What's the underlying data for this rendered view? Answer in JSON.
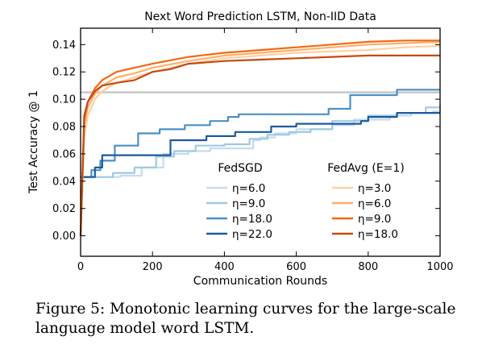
{
  "chart_data": {
    "type": "line",
    "title": "Next Word Prediction LSTM, Non-IID Data",
    "xlabel": "Communication Rounds",
    "ylabel": "Test Accuracy @ 1",
    "xlim": [
      0,
      1000
    ],
    "ylim": [
      -0.015,
      0.152
    ],
    "xticks": [
      "0",
      "200",
      "400",
      "600",
      "800",
      "1000"
    ],
    "yticks": [
      "0.00",
      "0.02",
      "0.04",
      "0.06",
      "0.08",
      "0.10",
      "0.12",
      "0.14"
    ],
    "grid": false,
    "reference_line": {
      "y": 0.105,
      "color": "#c8c8c8"
    },
    "legend_groups": [
      {
        "title": "FedSGD",
        "entries": [
          "η=6.0",
          "η=9.0",
          "η=18.0",
          "η=22.0"
        ]
      },
      {
        "title": "FedAvg (E=1)",
        "entries": [
          "η=3.0",
          "η=6.0",
          "η=9.0",
          "η=18.0"
        ]
      }
    ],
    "series": [
      {
        "group": "FedSGD",
        "name": "η=6.0",
        "color": "#c6dbef",
        "step": true,
        "x": [
          0,
          110,
          170,
          230,
          300,
          360,
          480,
          500,
          540,
          600,
          700,
          760,
          860,
          920,
          980,
          1000
        ],
        "y": [
          0.043,
          0.044,
          0.05,
          0.06,
          0.062,
          0.064,
          0.07,
          0.072,
          0.075,
          0.078,
          0.081,
          0.085,
          0.088,
          0.09,
          0.091,
          0.093
        ]
      },
      {
        "group": "FedSGD",
        "name": "η=9.0",
        "color": "#9ecae1",
        "step": true,
        "x": [
          0,
          90,
          150,
          210,
          260,
          320,
          400,
          470,
          520,
          580,
          640,
          700,
          800,
          880,
          960,
          1000
        ],
        "y": [
          0.043,
          0.046,
          0.05,
          0.058,
          0.062,
          0.066,
          0.067,
          0.071,
          0.074,
          0.076,
          0.078,
          0.084,
          0.088,
          0.09,
          0.094,
          0.096
        ]
      },
      {
        "group": "FedSGD",
        "name": "η=18.0",
        "color": "#4a90c4",
        "step": true,
        "x": [
          0,
          30,
          55,
          95,
          160,
          220,
          290,
          360,
          410,
          440,
          490,
          690,
          750,
          880,
          1000
        ],
        "y": [
          0.043,
          0.048,
          0.055,
          0.066,
          0.075,
          0.078,
          0.081,
          0.084,
          0.087,
          0.089,
          0.089,
          0.093,
          0.103,
          0.107,
          0.107
        ]
      },
      {
        "group": "FedSGD",
        "name": "η=22.0",
        "color": "#1c5a9e",
        "step": true,
        "x": [
          0,
          40,
          60,
          110,
          150,
          250,
          350,
          430,
          530,
          600,
          780,
          800,
          880,
          1000
        ],
        "y": [
          0.043,
          0.05,
          0.059,
          0.059,
          0.059,
          0.07,
          0.073,
          0.076,
          0.08,
          0.082,
          0.084,
          0.087,
          0.09,
          0.09
        ]
      },
      {
        "group": "FedAvg (E=1)",
        "name": "η=3.0",
        "color": "#fdd0a2",
        "step": false,
        "x": [
          0,
          10,
          20,
          40,
          60,
          100,
          150,
          200,
          300,
          400,
          500,
          600,
          700,
          800,
          900,
          1000
        ],
        "y": [
          0.0,
          0.072,
          0.088,
          0.1,
          0.106,
          0.112,
          0.116,
          0.12,
          0.126,
          0.13,
          0.132,
          0.134,
          0.135,
          0.136,
          0.138,
          0.139
        ]
      },
      {
        "group": "FedAvg (E=1)",
        "name": "η=6.0",
        "color": "#fdae6b",
        "step": false,
        "x": [
          0,
          10,
          20,
          40,
          60,
          100,
          150,
          200,
          300,
          400,
          500,
          600,
          700,
          800,
          900,
          1000
        ],
        "y": [
          0.0,
          0.08,
          0.094,
          0.104,
          0.11,
          0.116,
          0.119,
          0.123,
          0.128,
          0.132,
          0.134,
          0.136,
          0.138,
          0.14,
          0.141,
          0.142
        ]
      },
      {
        "group": "FedAvg (E=1)",
        "name": "η=9.0",
        "color": "#f16913",
        "step": false,
        "x": [
          0,
          10,
          20,
          40,
          60,
          100,
          150,
          200,
          300,
          400,
          500,
          600,
          700,
          800,
          900,
          1000
        ],
        "y": [
          0.0,
          0.085,
          0.098,
          0.108,
          0.114,
          0.12,
          0.123,
          0.126,
          0.131,
          0.134,
          0.136,
          0.138,
          0.14,
          0.142,
          0.143,
          0.143
        ]
      },
      {
        "group": "FedAvg (E=1)",
        "name": "η=18.0",
        "color": "#c44a10",
        "step": false,
        "x": [
          0,
          10,
          20,
          40,
          60,
          100,
          150,
          200,
          250,
          300,
          400,
          500,
          600,
          700,
          800,
          900,
          1000
        ],
        "y": [
          0.0,
          0.088,
          0.098,
          0.106,
          0.11,
          0.112,
          0.114,
          0.12,
          0.122,
          0.126,
          0.128,
          0.129,
          0.13,
          0.131,
          0.132,
          0.132,
          0.132
        ]
      }
    ]
  },
  "caption": "Figure 5: Monotonic learning curves for the large-scale language model word LSTM."
}
